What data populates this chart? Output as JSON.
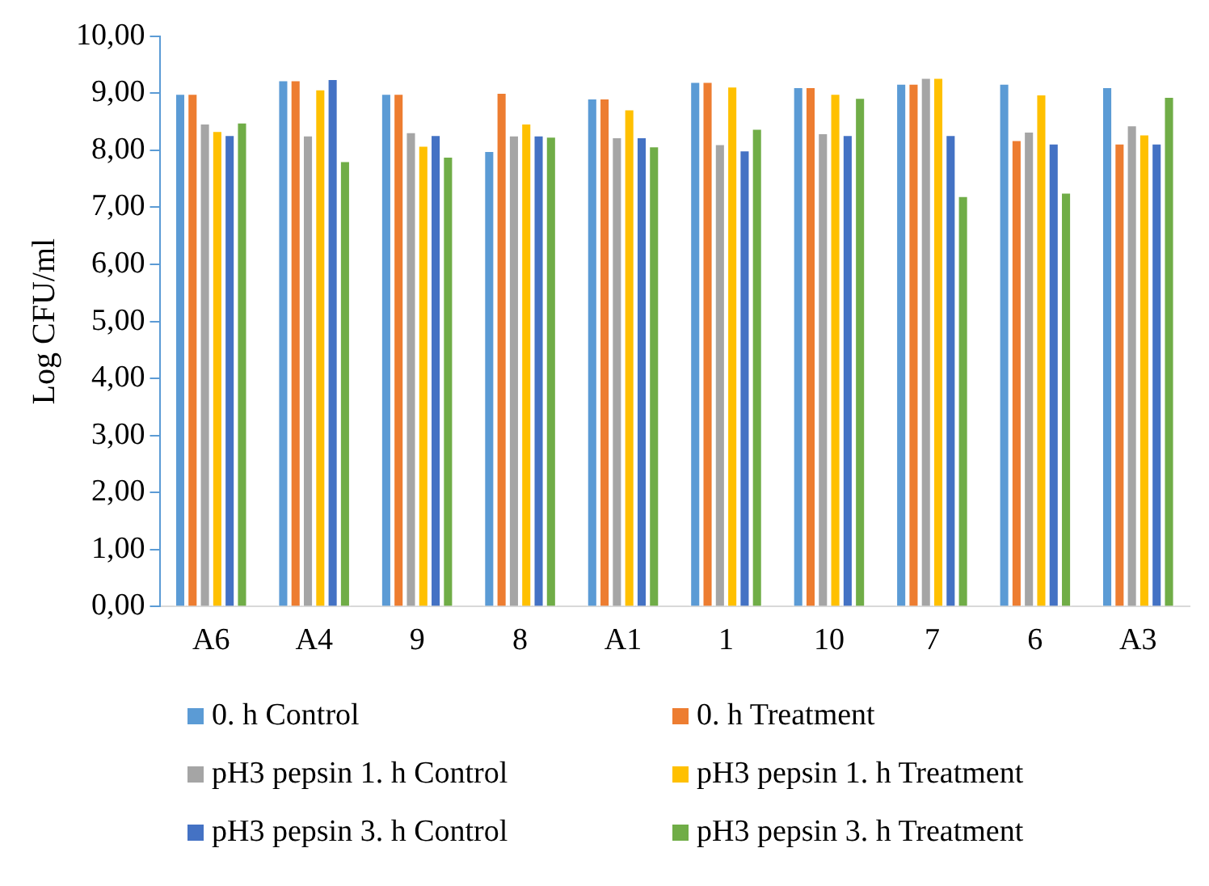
{
  "chart_data": {
    "type": "bar",
    "ylabel": "Log CFU/ml",
    "categories": [
      "A6",
      "A4",
      "9",
      "8",
      "A1",
      "1",
      "10",
      "7",
      "6",
      "A3"
    ],
    "ylim": [
      0,
      10
    ],
    "yticks": [
      {
        "value": 0,
        "label": "0,00"
      },
      {
        "value": 1,
        "label": "1,00"
      },
      {
        "value": 2,
        "label": "2,00"
      },
      {
        "value": 3,
        "label": "3,00"
      },
      {
        "value": 4,
        "label": "4,00"
      },
      {
        "value": 5,
        "label": "5,00"
      },
      {
        "value": 6,
        "label": "6,00"
      },
      {
        "value": 7,
        "label": "7,00"
      },
      {
        "value": 8,
        "label": "8,00"
      },
      {
        "value": 9,
        "label": "9,00"
      },
      {
        "value": 10,
        "label": "10,00"
      }
    ],
    "grid": false,
    "legend": "bottom",
    "series": [
      {
        "name": "0. h Control",
        "color": "#5b9bd5",
        "values": [
          9.0,
          9.24,
          9.0,
          8.0,
          8.92,
          9.21,
          9.12,
          9.18,
          9.18,
          9.12
        ]
      },
      {
        "name": "0. h Treatment",
        "color": "#ed7d31",
        "values": [
          9.0,
          9.24,
          9.0,
          9.02,
          8.92,
          9.21,
          9.12,
          9.18,
          8.19,
          8.13
        ]
      },
      {
        "name": "pH3 pepsin 1. h Control",
        "color": "#a5a5a5",
        "values": [
          8.48,
          8.27,
          8.33,
          8.27,
          8.24,
          8.12,
          8.31,
          9.28,
          8.34,
          8.45
        ]
      },
      {
        "name": "pH3 pepsin 1. h Treatment",
        "color": "#ffc000",
        "values": [
          8.35,
          9.08,
          8.09,
          8.48,
          8.73,
          9.13,
          9.0,
          9.28,
          8.99,
          8.29
        ]
      },
      {
        "name": "pH3 pepsin 3. h Control",
        "color": "#4472c4",
        "values": [
          8.28,
          9.26,
          8.28,
          8.27,
          8.24,
          8.01,
          8.28,
          8.28,
          8.13,
          8.13
        ]
      },
      {
        "name": "pH3 pepsin 3. h Treatment",
        "color": "#70ad47",
        "values": [
          8.5,
          7.82,
          7.9,
          8.25,
          8.08,
          8.39,
          8.93,
          7.21,
          7.27,
          8.95
        ]
      }
    ]
  }
}
